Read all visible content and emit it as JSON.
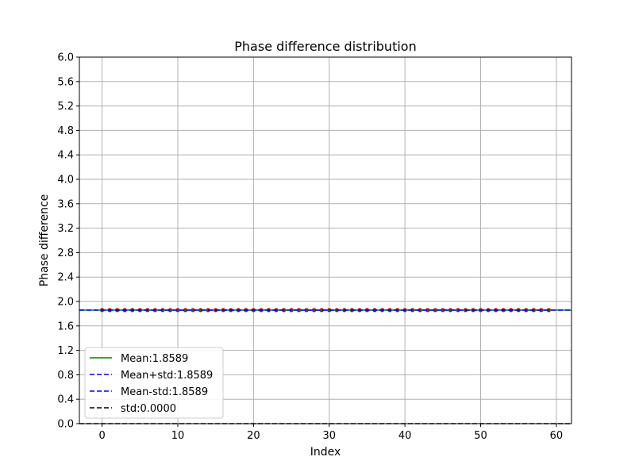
{
  "chart_data": {
    "type": "scatter",
    "title": "Phase difference distribution",
    "xlabel": "Index",
    "ylabel": "Phase difference",
    "xlim": [
      -3,
      62
    ],
    "ylim": [
      0,
      6.0
    ],
    "grid": true,
    "legend_position": "lower-left",
    "x_ticks": [
      0,
      10,
      20,
      30,
      40,
      50,
      60
    ],
    "y_ticks": [
      "0.0",
      "0.4",
      "0.8",
      "1.2",
      "1.6",
      "2.0",
      "2.4",
      "2.8",
      "3.2",
      "3.6",
      "4.0",
      "4.4",
      "4.8",
      "5.2",
      "5.6",
      "6.0"
    ],
    "points": {
      "x_start": 0,
      "x_end": 59,
      "y": 1.8589,
      "color": "#cc0000",
      "line_color": "#1f77b4"
    },
    "reference_lines": [
      {
        "label": "Mean:1.8589",
        "y": 1.8589,
        "color": "#008000",
        "style": "solid"
      },
      {
        "label": "Mean+std:1.8589",
        "y": 1.8589,
        "color": "#0000ff",
        "style": "dashed"
      },
      {
        "label": "Mean-std:1.8589",
        "y": 1.8589,
        "color": "#0000ff",
        "style": "dashed"
      },
      {
        "label": "std:0.0000",
        "y": 0.0,
        "color": "#000000",
        "style": "dashed"
      }
    ]
  }
}
